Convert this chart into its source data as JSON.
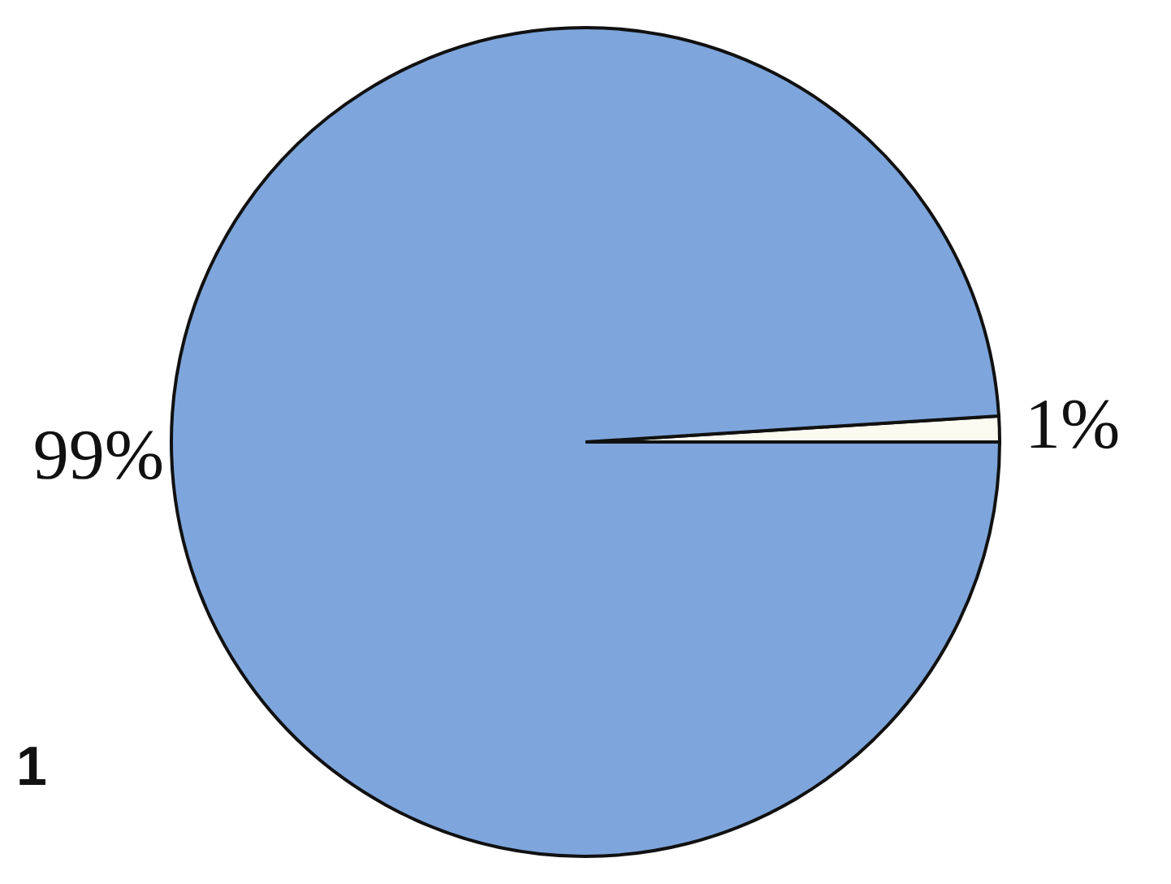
{
  "chart_data": {
    "type": "pie",
    "categories": [
      null,
      null
    ],
    "values": [
      1,
      99
    ],
    "colors": [
      "#fbfaf0",
      "#7ea6dc"
    ],
    "value_labels": [
      "1%",
      "99%"
    ],
    "annotations": [
      "1"
    ]
  }
}
